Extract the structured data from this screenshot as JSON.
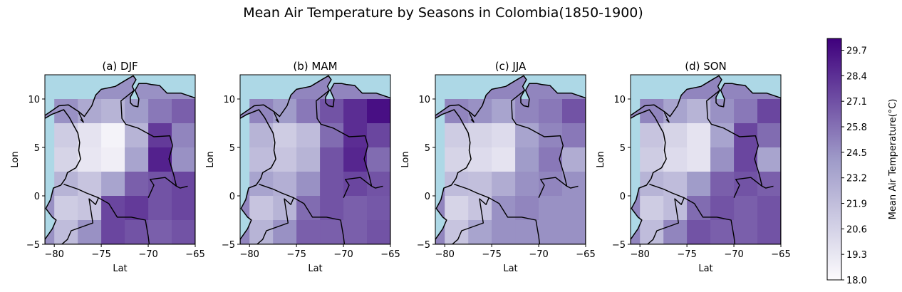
{
  "title": "Mean Air Temperature by Seasons in Colombia(1850-1900)",
  "colors": {
    "ocean": "#add8e6",
    "cmap_low": "#fcfbfd",
    "cmap_mid": "#9e9ac8",
    "cmap_high": "#3f007d",
    "border": "#000000"
  },
  "colorbar": {
    "label": "Mean Air Temperature(°C)",
    "range": [
      18.0,
      30.3
    ],
    "ticks": [
      "29.7",
      "28.4",
      "27.1",
      "25.8",
      "24.5",
      "23.2",
      "21.9",
      "20.6",
      "19.3",
      "18.0"
    ]
  },
  "chart_data": [
    {
      "type": "heatmap",
      "title": "(a) DJF",
      "xlabel": "Lat",
      "ylabel": "Lon",
      "xlim": [
        -81,
        -65
      ],
      "ylim": [
        -5,
        12.5
      ],
      "xticks": [
        "−80",
        "−75",
        "−70",
        "−65"
      ],
      "yticks": [
        "10",
        "5",
        "0",
        "−5"
      ],
      "grid_x": [
        -78.75,
        -76.25,
        -73.75,
        -71.25,
        -68.75,
        -66.25
      ],
      "grid_y": [
        8.75,
        6.25,
        3.75,
        1.25,
        -1.25,
        -3.75
      ],
      "values": [
        [
          24.5,
          23.2,
          22.5,
          24.0,
          25.5,
          26.5
        ],
        [
          21.0,
          19.5,
          18.5,
          22.5,
          28.0,
          25.0
        ],
        [
          20.5,
          19.3,
          18.8,
          23.5,
          29.0,
          24.5
        ],
        [
          22.5,
          21.5,
          23.5,
          26.5,
          27.0,
          27.5
        ],
        [
          21.0,
          21.5,
          27.5,
          28.0,
          27.0,
          27.5
        ],
        [
          22.0,
          24.5,
          27.5,
          27.0,
          26.5,
          27.0
        ]
      ]
    },
    {
      "type": "heatmap",
      "title": "(b) MAM",
      "xlabel": "Lat",
      "ylabel": "Lon",
      "xlim": [
        -81,
        -65
      ],
      "ylim": [
        -5,
        12.5
      ],
      "xticks": [
        "−80",
        "−75",
        "−70",
        "−65"
      ],
      "yticks": [
        "10",
        "5",
        "0",
        "−5"
      ],
      "grid_x": [
        -78.75,
        -76.25,
        -73.75,
        -71.25,
        -68.75,
        -66.25
      ],
      "grid_y": [
        8.75,
        6.25,
        3.75,
        1.25,
        -1.25,
        -3.75
      ],
      "values": [
        [
          25.0,
          24.0,
          25.5,
          27.0,
          28.5,
          29.7
        ],
        [
          22.5,
          21.0,
          22.0,
          26.0,
          28.5,
          27.5
        ],
        [
          22.0,
          21.5,
          22.5,
          27.0,
          28.8,
          26.0
        ],
        [
          23.5,
          22.8,
          24.5,
          27.0,
          27.5,
          27.0
        ],
        [
          21.5,
          22.5,
          26.0,
          27.0,
          26.5,
          26.8
        ],
        [
          22.5,
          24.5,
          26.5,
          26.5,
          26.5,
          27.0
        ]
      ]
    },
    {
      "type": "heatmap",
      "title": "(c) JJA",
      "xlabel": "Lat",
      "ylabel": "Lon",
      "xlim": [
        -81,
        -65
      ],
      "ylim": [
        -5,
        12.5
      ],
      "xticks": [
        "−80",
        "−75",
        "−70",
        "−65"
      ],
      "yticks": [
        "10",
        "5",
        "0",
        "−5"
      ],
      "grid_x": [
        -78.75,
        -76.25,
        -73.75,
        -71.25,
        -68.75,
        -66.25
      ],
      "grid_y": [
        8.75,
        6.25,
        3.75,
        1.25,
        -1.25,
        -3.75
      ],
      "values": [
        [
          25.0,
          24.5,
          23.5,
          25.0,
          25.5,
          27.0
        ],
        [
          21.0,
          20.5,
          20.0,
          23.5,
          25.0,
          25.5
        ],
        [
          20.5,
          20.0,
          19.5,
          24.0,
          25.5,
          23.0
        ],
        [
          22.0,
          21.8,
          23.0,
          24.5,
          25.0,
          24.5
        ],
        [
          20.5,
          21.5,
          24.5,
          25.0,
          24.5,
          24.5
        ],
        [
          21.5,
          23.5,
          24.5,
          24.5,
          24.5,
          24.5
        ]
      ]
    },
    {
      "type": "heatmap",
      "title": "(d) SON",
      "xlabel": "Lat",
      "ylabel": "Lon",
      "xlim": [
        -81,
        -65
      ],
      "ylim": [
        -5,
        12.5
      ],
      "xticks": [
        "−80",
        "−75",
        "−70",
        "−65"
      ],
      "yticks": [
        "10",
        "5",
        "0",
        "−5"
      ],
      "grid_x": [
        -78.75,
        -76.25,
        -73.75,
        -71.25,
        -68.75,
        -66.25
      ],
      "grid_y": [
        8.75,
        6.25,
        3.75,
        1.25,
        -1.25,
        -3.75
      ],
      "values": [
        [
          25.0,
          23.5,
          22.5,
          24.5,
          25.5,
          27.5
        ],
        [
          21.5,
          20.5,
          19.5,
          23.5,
          27.5,
          26.0
        ],
        [
          21.0,
          20.0,
          19.5,
          24.5,
          27.5,
          23.5
        ],
        [
          22.5,
          22.0,
          24.0,
          26.5,
          27.0,
          26.5
        ],
        [
          21.0,
          22.0,
          26.0,
          27.0,
          26.5,
          27.0
        ],
        [
          22.0,
          25.0,
          27.0,
          26.5,
          26.5,
          27.0
        ]
      ]
    }
  ]
}
